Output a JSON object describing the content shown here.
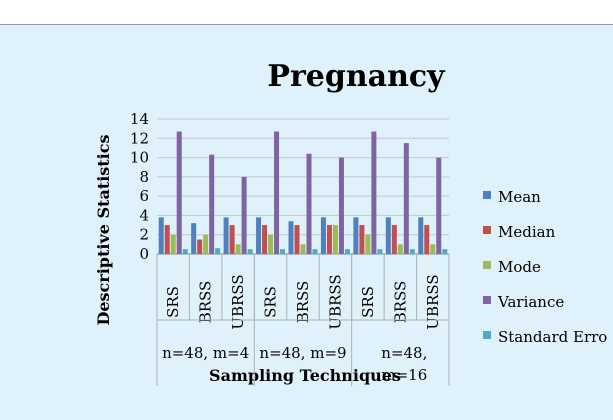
{
  "chart_data": {
    "type": "bar",
    "title": "Pregnancy",
    "xlabel": "Sampling Techniques",
    "ylabel": "Descriptive Statistics",
    "ylim": [
      0,
      14
    ],
    "yticks": [
      0,
      2,
      4,
      6,
      8,
      10,
      12,
      14
    ],
    "grid": true,
    "legend_position": "right",
    "groups": [
      {
        "label": "n=48, m=4",
        "categories": [
          "SRS",
          "BRSS",
          "UBRSS"
        ]
      },
      {
        "label": "n=48, m=9",
        "categories": [
          "SRS",
          "BRSS",
          "UBRSS"
        ]
      },
      {
        "label": "n=48, m=16",
        "label_lines": [
          "n=48,",
          "m=16"
        ],
        "categories": [
          "SRS",
          "BRSS",
          "UBRSS"
        ]
      }
    ],
    "categories": [
      "SRS",
      "BRSS",
      "UBRSS",
      "SRS",
      "BRSS",
      "UBRSS",
      "SRS",
      "BRSS",
      "UBRSS"
    ],
    "series": [
      {
        "name": "Mean",
        "color": "#4f81bd",
        "values": [
          3.8,
          3.2,
          3.8,
          3.8,
          3.4,
          3.8,
          3.8,
          3.8,
          3.8
        ]
      },
      {
        "name": "Median",
        "color": "#c0504d",
        "values": [
          3.0,
          1.5,
          3.0,
          3.0,
          3.0,
          3.0,
          3.0,
          3.0,
          3.0
        ]
      },
      {
        "name": "Mode",
        "color": "#9bbb59",
        "values": [
          2.0,
          2.0,
          1.0,
          2.0,
          1.0,
          3.0,
          2.0,
          1.0,
          1.0
        ]
      },
      {
        "name": "Variance",
        "color": "#8064a2",
        "values": [
          12.7,
          10.3,
          8.0,
          12.7,
          10.4,
          10.0,
          12.7,
          11.5,
          10.0
        ]
      },
      {
        "name": "Standard Erro",
        "color": "#4bacc6",
        "values": [
          0.5,
          0.6,
          0.5,
          0.5,
          0.5,
          0.5,
          0.5,
          0.5,
          0.5
        ]
      }
    ]
  }
}
